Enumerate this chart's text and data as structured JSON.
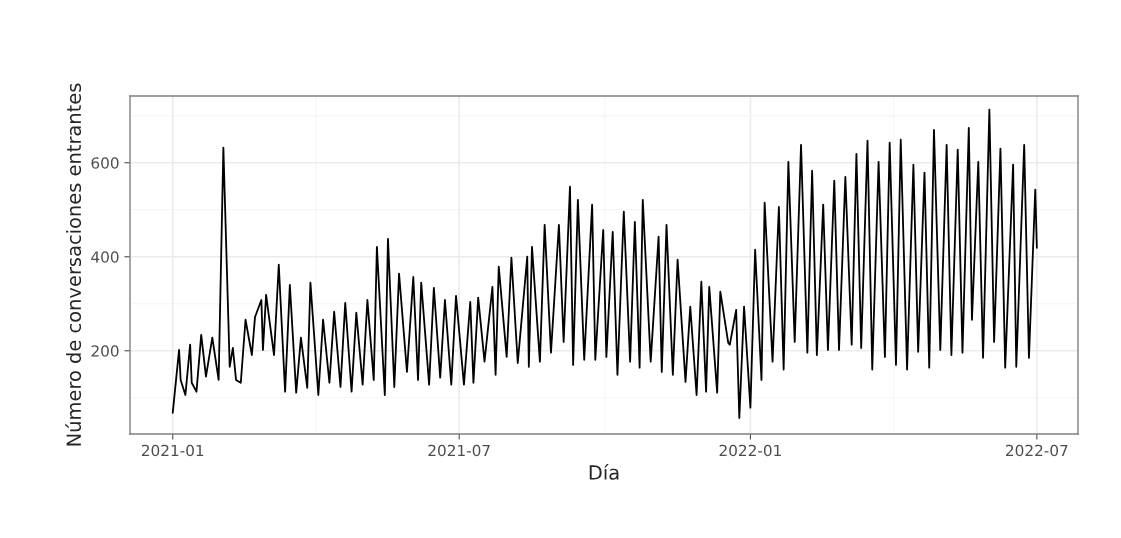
{
  "chart_data": {
    "type": "line",
    "xlabel": "Día",
    "ylabel": "Número de conversaciones entrantes",
    "x": [
      "2021-01-01",
      "2021-01-05",
      "2021-01-06",
      "2021-01-09",
      "2021-01-12",
      "2021-01-13",
      "2021-01-16",
      "2021-01-19",
      "2021-01-22",
      "2021-01-26",
      "2021-01-30",
      "2021-02-02",
      "2021-02-06",
      "2021-02-08",
      "2021-02-10",
      "2021-02-13",
      "2021-02-16",
      "2021-02-20",
      "2021-02-22",
      "2021-02-26",
      "2021-02-27",
      "2021-03-01",
      "2021-03-06",
      "2021-03-09",
      "2021-03-13",
      "2021-03-16",
      "2021-03-20",
      "2021-03-23",
      "2021-03-27",
      "2021-03-29",
      "2021-04-03",
      "2021-04-06",
      "2021-04-10",
      "2021-04-13",
      "2021-04-17",
      "2021-04-20",
      "2021-04-24",
      "2021-04-27",
      "2021-05-01",
      "2021-05-04",
      "2021-05-08",
      "2021-05-10",
      "2021-05-15",
      "2021-05-17",
      "2021-05-21",
      "2021-05-24",
      "2021-05-29",
      "2021-06-02",
      "2021-06-05",
      "2021-06-07",
      "2021-06-12",
      "2021-06-15",
      "2021-06-19",
      "2021-06-22",
      "2021-06-26",
      "2021-06-29",
      "2021-07-04",
      "2021-07-08",
      "2021-07-10",
      "2021-07-13",
      "2021-07-17",
      "2021-07-22",
      "2021-07-24",
      "2021-07-26",
      "2021-07-31",
      "2021-08-03",
      "2021-08-07",
      "2021-08-13",
      "2021-08-14",
      "2021-08-16",
      "2021-08-21",
      "2021-08-24",
      "2021-08-28",
      "2021-09-02",
      "2021-09-05",
      "2021-09-09",
      "2021-09-11",
      "2021-09-14",
      "2021-09-18",
      "2021-09-23",
      "2021-09-25",
      "2021-09-30",
      "2021-10-02",
      "2021-10-06",
      "2021-10-09",
      "2021-10-13",
      "2021-10-17",
      "2021-10-20",
      "2021-10-23",
      "2021-10-25",
      "2021-10-30",
      "2021-11-04",
      "2021-11-06",
      "2021-11-09",
      "2021-11-13",
      "2021-11-16",
      "2021-11-21",
      "2021-11-24",
      "2021-11-28",
      "2021-12-01",
      "2021-12-04",
      "2021-12-06",
      "2021-12-11",
      "2021-12-13",
      "2021-12-18",
      "2021-12-19",
      "2021-12-23",
      "2021-12-25",
      "2021-12-28",
      "2022-01-01",
      "2022-01-04",
      "2022-01-08",
      "2022-01-10",
      "2022-01-15",
      "2022-01-19",
      "2022-01-22",
      "2022-01-25",
      "2022-01-29",
      "2022-02-02",
      "2022-02-06",
      "2022-02-09",
      "2022-02-12",
      "2022-02-16",
      "2022-02-19",
      "2022-02-23",
      "2022-02-26",
      "2022-03-02",
      "2022-03-06",
      "2022-03-09",
      "2022-03-12",
      "2022-03-16",
      "2022-03-19",
      "2022-03-23",
      "2022-03-27",
      "2022-03-30",
      "2022-04-03",
      "2022-04-06",
      "2022-04-10",
      "2022-04-14",
      "2022-04-17",
      "2022-04-21",
      "2022-04-24",
      "2022-04-27",
      "2022-05-01",
      "2022-05-05",
      "2022-05-08",
      "2022-05-12",
      "2022-05-15",
      "2022-05-19",
      "2022-05-21",
      "2022-05-25",
      "2022-05-28",
      "2022-06-01",
      "2022-06-04",
      "2022-06-08",
      "2022-06-11",
      "2022-06-16",
      "2022-06-18",
      "2022-06-23",
      "2022-06-26",
      "2022-06-30",
      "2022-07-01"
    ],
    "series": [
      {
        "color": "#000000",
        "values": [
          68,
          202,
          138,
          106,
          213,
          132,
          113,
          234,
          145,
          228,
          138,
          632,
          166,
          206,
          138,
          132,
          266,
          191,
          272,
          308,
          202,
          319,
          191,
          383,
          113,
          340,
          111,
          228,
          121,
          345,
          106,
          266,
          132,
          283,
          123,
          302,
          113,
          281,
          128,
          308,
          138,
          421,
          106,
          438,
          123,
          364,
          155,
          357,
          138,
          345,
          128,
          334,
          143,
          308,
          128,
          317,
          128,
          304,
          132,
          313,
          177,
          336,
          149,
          379,
          187,
          398,
          174,
          400,
          166,
          421,
          177,
          468,
          196,
          468,
          219,
          549,
          170,
          521,
          181,
          511,
          181,
          457,
          187,
          453,
          149,
          496,
          177,
          474,
          164,
          521,
          177,
          443,
          155,
          468,
          149,
          394,
          134,
          294,
          106,
          347,
          113,
          336,
          111,
          326,
          217,
          213,
          287,
          57,
          294,
          79,
          415,
          138,
          515,
          177,
          506,
          160,
          602,
          219,
          638,
          196,
          583,
          191,
          511,
          202,
          562,
          202,
          570,
          213,
          619,
          206,
          647,
          160,
          602,
          187,
          643,
          170,
          649,
          160,
          596,
          198,
          579,
          164,
          670,
          202,
          638,
          191,
          628,
          196,
          674,
          266,
          602,
          185,
          713,
          219,
          630,
          164,
          596,
          166,
          638,
          185,
          543,
          419
        ]
      }
    ],
    "xlim": [
      "2020-12-05",
      "2022-07-27"
    ],
    "xticks": [
      "2021-01",
      "2021-07",
      "2022-01",
      "2022-07"
    ],
    "ylim": [
      23,
      742
    ],
    "yticks": [
      200,
      400,
      600
    ],
    "grid": true,
    "line_style": "solid",
    "marker": "none"
  }
}
